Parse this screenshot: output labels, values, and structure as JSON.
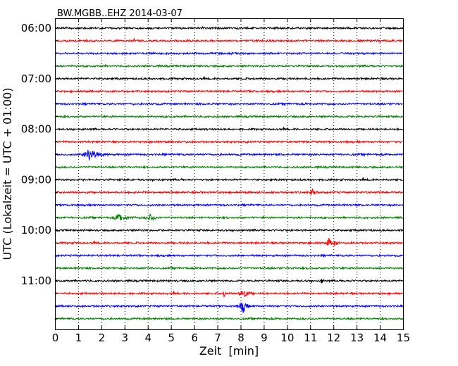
{
  "chart_data": {
    "type": "line",
    "title": "BW.MGBB..EHZ 2014-03-07",
    "xlabel": "Zeit  [min]",
    "ylabel": "UTC (Lokalzeit = UTC + 01:00)",
    "xlim": [
      0,
      15
    ],
    "x_ticks": [
      "0",
      "1",
      "2",
      "3",
      "4",
      "5",
      "6",
      "7",
      "8",
      "9",
      "10",
      "11",
      "12",
      "13",
      "14",
      "15"
    ],
    "y_tick_labels": [
      "06:00",
      "07:00",
      "08:00",
      "09:00",
      "10:00",
      "11:00"
    ],
    "row_interval_min": 15,
    "grid": "vertical dotted",
    "trace_colors": [
      "#000000",
      "#ff0000",
      "#0000ff",
      "#008000"
    ],
    "rows": [
      {
        "start": "06:00",
        "color": "#000000"
      },
      {
        "start": "06:15",
        "color": "#ff0000"
      },
      {
        "start": "06:30",
        "color": "#0000ff"
      },
      {
        "start": "06:45",
        "color": "#008000"
      },
      {
        "start": "07:00",
        "color": "#000000"
      },
      {
        "start": "07:15",
        "color": "#ff0000"
      },
      {
        "start": "07:30",
        "color": "#0000ff"
      },
      {
        "start": "07:45",
        "color": "#008000"
      },
      {
        "start": "08:00",
        "color": "#000000"
      },
      {
        "start": "08:15",
        "color": "#ff0000"
      },
      {
        "start": "08:30",
        "color": "#0000ff",
        "events": [
          {
            "t": 1.5,
            "amp": 1.0,
            "dur": 0.6
          }
        ]
      },
      {
        "start": "08:45",
        "color": "#008000"
      },
      {
        "start": "09:00",
        "color": "#000000"
      },
      {
        "start": "09:15",
        "color": "#ff0000",
        "events": [
          {
            "t": 11.1,
            "amp": 0.6,
            "dur": 0.2
          }
        ]
      },
      {
        "start": "09:30",
        "color": "#0000ff"
      },
      {
        "start": "09:45",
        "color": "#008000",
        "events": [
          {
            "t": 2.8,
            "amp": 0.6,
            "dur": 0.5
          },
          {
            "t": 4.1,
            "amp": 0.5,
            "dur": 0.4
          }
        ]
      },
      {
        "start": "10:00",
        "color": "#000000"
      },
      {
        "start": "10:15",
        "color": "#ff0000",
        "events": [
          {
            "t": 11.8,
            "amp": 0.7,
            "dur": 0.2
          },
          {
            "t": 12.05,
            "amp": 0.6,
            "dur": 0.15
          }
        ]
      },
      {
        "start": "10:30",
        "color": "#0000ff"
      },
      {
        "start": "10:45",
        "color": "#008000"
      },
      {
        "start": "11:00",
        "color": "#000000",
        "events": [
          {
            "t": 11.5,
            "amp": 0.5,
            "dur": 0.1
          }
        ]
      },
      {
        "start": "11:15",
        "color": "#ff0000",
        "events": [
          {
            "t": 7.3,
            "amp": 0.6,
            "dur": 0.1
          },
          {
            "t": 8.1,
            "amp": 0.9,
            "dur": 0.35
          }
        ]
      },
      {
        "start": "11:30",
        "color": "#0000ff",
        "events": [
          {
            "t": 8.1,
            "amp": 1.0,
            "dur": 0.3
          }
        ]
      },
      {
        "start": "11:45",
        "color": "#008000"
      }
    ]
  }
}
